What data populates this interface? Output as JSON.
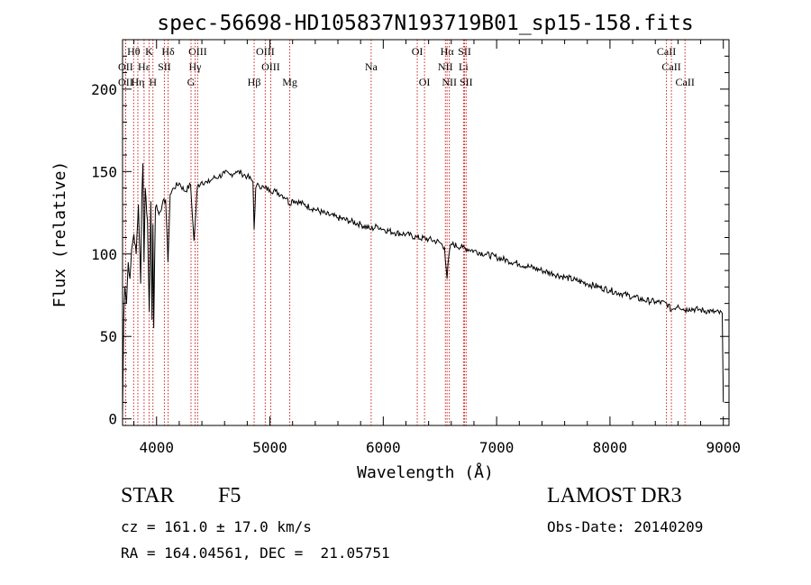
{
  "chart_data": {
    "type": "line",
    "title": "spec-56698-HD105837N193719B01_sp15-158.fits",
    "xlabel": "Wavelength (Å)",
    "ylabel": "Flux (relative)",
    "xlim": [
      3700,
      9050
    ],
    "ylim": [
      -4,
      230
    ],
    "xticks": [
      4000,
      5000,
      6000,
      7000,
      8000,
      9000
    ],
    "yticks": [
      0,
      50,
      100,
      150,
      200
    ],
    "grid": false,
    "series": [
      {
        "name": "flux",
        "x": [
          3700,
          3710,
          3720,
          3735,
          3750,
          3765,
          3780,
          3800,
          3820,
          3840,
          3860,
          3870,
          3880,
          3889,
          3900,
          3920,
          3935,
          3950,
          3960,
          3968,
          3975,
          3990,
          4000,
          4020,
          4050,
          4080,
          4101,
          4120,
          4150,
          4200,
          4250,
          4300,
          4330,
          4340,
          4360,
          4400,
          4450,
          4500,
          4550,
          4600,
          4650,
          4700,
          4750,
          4800,
          4850,
          4861,
          4875,
          4900,
          4950,
          5000,
          5050,
          5100,
          5150,
          5172,
          5200,
          5300,
          5400,
          5500,
          5600,
          5700,
          5800,
          5893,
          5950,
          6000,
          6100,
          6200,
          6300,
          6400,
          6500,
          6540,
          6563,
          6580,
          6600,
          6700,
          6800,
          6900,
          7000,
          7100,
          7200,
          7300,
          7400,
          7500,
          7600,
          7700,
          7800,
          7900,
          8000,
          8100,
          8200,
          8300,
          8400,
          8500,
          8542,
          8600,
          8662,
          8700,
          8800,
          8900,
          8990,
          9000
        ],
        "y": [
          2,
          62,
          80,
          70,
          95,
          85,
          103,
          112,
          100,
          130,
          82,
          135,
          155,
          95,
          140,
          120,
          65,
          132,
          60,
          118,
          55,
          128,
          130,
          124,
          130,
          133,
          95,
          136,
          140,
          143,
          138,
          142,
          108,
          118,
          141,
          144,
          143,
          146,
          147,
          149,
          148,
          150,
          149,
          147,
          144,
          115,
          140,
          142,
          140,
          139,
          138,
          136,
          134,
          130,
          133,
          130,
          127,
          124,
          122,
          120,
          118,
          115,
          117,
          115,
          113,
          112,
          110,
          109,
          107,
          104,
          85,
          100,
          106,
          104,
          102,
          100,
          98,
          96,
          94,
          92,
          90,
          88,
          86,
          84,
          82,
          80,
          78,
          76,
          74,
          72,
          71,
          70,
          66,
          69,
          66,
          67,
          66,
          65,
          64,
          10
        ]
      }
    ],
    "lines_top": [
      {
        "label": "Hθ",
        "x": 3798
      },
      {
        "label": "K",
        "x": 3934
      },
      {
        "label": "Hδ",
        "x": 4102
      },
      {
        "label": "OIII",
        "x": 4363
      },
      {
        "label": "OIII",
        "x": 4959
      },
      {
        "label": "OI",
        "x": 6300
      },
      {
        "label": "Hα",
        "x": 6563
      },
      {
        "label": "SII",
        "x": 6717
      },
      {
        "label": "CaII",
        "x": 8498
      }
    ],
    "lines_mid": [
      {
        "label": "OII",
        "x": 3727
      },
      {
        "label": "Hε",
        "x": 3890
      },
      {
        "label": "SII",
        "x": 4069
      },
      {
        "label": "Hγ",
        "x": 4340
      },
      {
        "label": "OIII",
        "x": 5007
      },
      {
        "label": "Na",
        "x": 5893
      },
      {
        "label": "NII",
        "x": 6548
      },
      {
        "label": "Li",
        "x": 6708
      },
      {
        "label": "CaII",
        "x": 8542
      }
    ],
    "lines_low": [
      {
        "label": "OII",
        "x": 3727
      },
      {
        "label": "Hη",
        "x": 3835
      },
      {
        "label": "H",
        "x": 3968
      },
      {
        "label": "G",
        "x": 4304
      },
      {
        "label": "Hβ",
        "x": 4861
      },
      {
        "label": "Mg",
        "x": 5175
      },
      {
        "label": "OI",
        "x": 6364
      },
      {
        "label": "NII",
        "x": 6583
      },
      {
        "label": "SII",
        "x": 6731
      },
      {
        "label": "CaII",
        "x": 8662
      }
    ]
  },
  "info": {
    "class": "STAR",
    "subclass": "F5",
    "survey": "LAMOST DR3",
    "cz": "cz = 161.0 ± 17.0 km/s",
    "obs_date": "Obs-Date: 20140209",
    "coords": "RA = 164.04561, DEC =  21.05751"
  }
}
